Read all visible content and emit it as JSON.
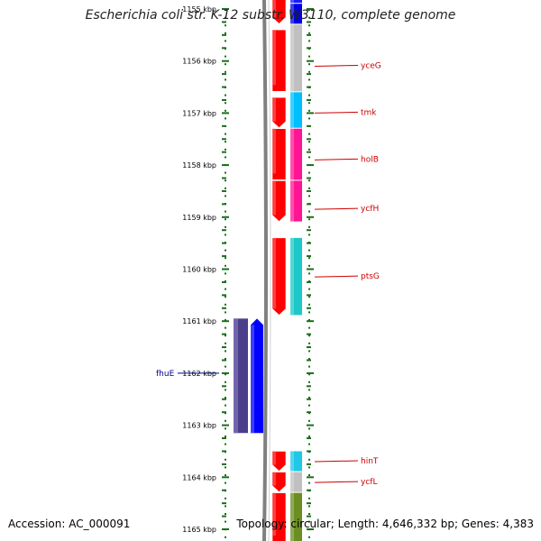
{
  "title": "Escherichia coli str. K-12 substr. W3110, complete genome",
  "footer": {
    "accession": "Accession: AC_000091",
    "topology": "Topology: circular; Length: 4,646,332 bp; Genes: 4,383"
  },
  "colors": {
    "ruler": "#1a6e1a",
    "backbone": "#808080",
    "forward_cds": "#ff0000",
    "reverse_cds": "#0000ff",
    "reverse_orf": "#4b3f8c",
    "label_forward": "#cc0000",
    "label_reverse": "#00008b"
  },
  "map": {
    "start_kbp": 1155,
    "end_kbp": 1165,
    "ticks": [
      "1155 kbp",
      "1156 kbp",
      "1157 kbp",
      "1158 kbp",
      "1159 kbp",
      "1160 kbp",
      "1161 kbp",
      "1162 kbp",
      "1163 kbp",
      "1164 kbp",
      "1165 kbp"
    ],
    "forward_cds": [
      {
        "start": 1154.6,
        "end": 1155.3,
        "arrow": true
      },
      {
        "start": 1155.4,
        "end": 1156.6,
        "arrow": false
      },
      {
        "start": 1156.7,
        "end": 1157.3,
        "arrow": true
      },
      {
        "start": 1157.3,
        "end": 1158.3,
        "arrow": false
      },
      {
        "start": 1158.3,
        "end": 1159.1,
        "arrow": true
      },
      {
        "start": 1159.4,
        "end": 1160.9,
        "arrow": true
      },
      {
        "start": 1163.5,
        "end": 1163.9,
        "arrow": true
      },
      {
        "start": 1163.9,
        "end": 1164.3,
        "arrow": true
      },
      {
        "start": 1164.3,
        "end": 1165.3,
        "arrow": false
      }
    ],
    "reverse_cds": [
      {
        "start": 1160.95,
        "end": 1163.15,
        "arrow": true
      }
    ],
    "reverse_orf": [
      {
        "start": 1160.95,
        "end": 1163.15
      }
    ],
    "feature_track": [
      {
        "start": 1154.6,
        "end": 1154.9,
        "color": "#1a1aff"
      },
      {
        "start": 1154.9,
        "end": 1155.3,
        "color": "#0000e6"
      },
      {
        "start": 1155.3,
        "end": 1156.6,
        "color": "#c0c0c0"
      },
      {
        "start": 1156.6,
        "end": 1157.3,
        "color": "#00bfff"
      },
      {
        "start": 1157.3,
        "end": 1158.3,
        "color": "#ff1493"
      },
      {
        "start": 1158.3,
        "end": 1159.1,
        "color": "#ff1493"
      },
      {
        "start": 1159.4,
        "end": 1160.9,
        "color": "#1ec8c8"
      },
      {
        "start": 1163.5,
        "end": 1163.9,
        "color": "#1ec8e6"
      },
      {
        "start": 1163.9,
        "end": 1164.3,
        "color": "#c0c0c0"
      },
      {
        "start": 1164.3,
        "end": 1165.3,
        "color": "#6b8e23"
      }
    ],
    "gene_labels": [
      {
        "name": "yceG",
        "strand": "+",
        "at": 1156.1
      },
      {
        "name": "tmk",
        "strand": "+",
        "at": 1157.0
      },
      {
        "name": "holB",
        "strand": "+",
        "at": 1157.9
      },
      {
        "name": "ycfH",
        "strand": "+",
        "at": 1158.85
      },
      {
        "name": "ptsG",
        "strand": "+",
        "at": 1160.15
      },
      {
        "name": "fhuE",
        "strand": "-",
        "at": 1162.0
      },
      {
        "name": "hinT",
        "strand": "+",
        "at": 1163.7
      },
      {
        "name": "ycfL",
        "strand": "+",
        "at": 1164.1
      }
    ]
  }
}
